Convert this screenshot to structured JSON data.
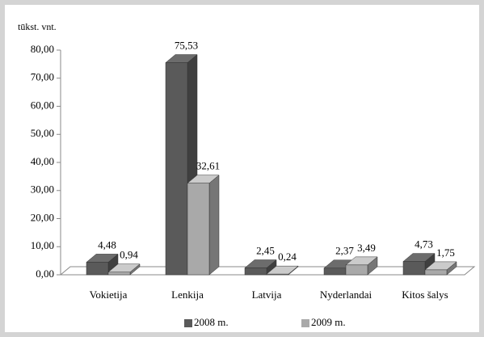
{
  "chart_data": {
    "type": "bar3d",
    "y_axis_label": "tūkst. vnt.",
    "categories": [
      "Vokietija",
      "Lenkija",
      "Latvija",
      "Nyderlandai",
      "Kitos šalys"
    ],
    "series": [
      {
        "name": "2008 m.",
        "color": "#5a5a5a",
        "values": [
          4.48,
          75.53,
          2.45,
          2.37,
          4.73
        ],
        "value_labels": [
          "4,48",
          "75,53",
          "2,45",
          "2,37",
          "4,73"
        ]
      },
      {
        "name": "2009 m.",
        "color": "#a9a9a9",
        "values": [
          0.94,
          32.61,
          0.24,
          3.49,
          1.75
        ],
        "value_labels": [
          "0,94",
          "32,61",
          "0,24",
          "3,49",
          "1,75"
        ]
      }
    ],
    "ylim": [
      0,
      80
    ],
    "yticks": [
      {
        "value": 0,
        "label": "0,00"
      },
      {
        "value": 10,
        "label": "10,00"
      },
      {
        "value": 20,
        "label": "20,00"
      },
      {
        "value": 30,
        "label": "30,00"
      },
      {
        "value": 40,
        "label": "40,00"
      },
      {
        "value": 50,
        "label": "50,00"
      },
      {
        "value": 60,
        "label": "60,00"
      },
      {
        "value": 70,
        "label": "70,00"
      },
      {
        "value": 80,
        "label": "80,00"
      }
    ],
    "legend": "bottom"
  }
}
